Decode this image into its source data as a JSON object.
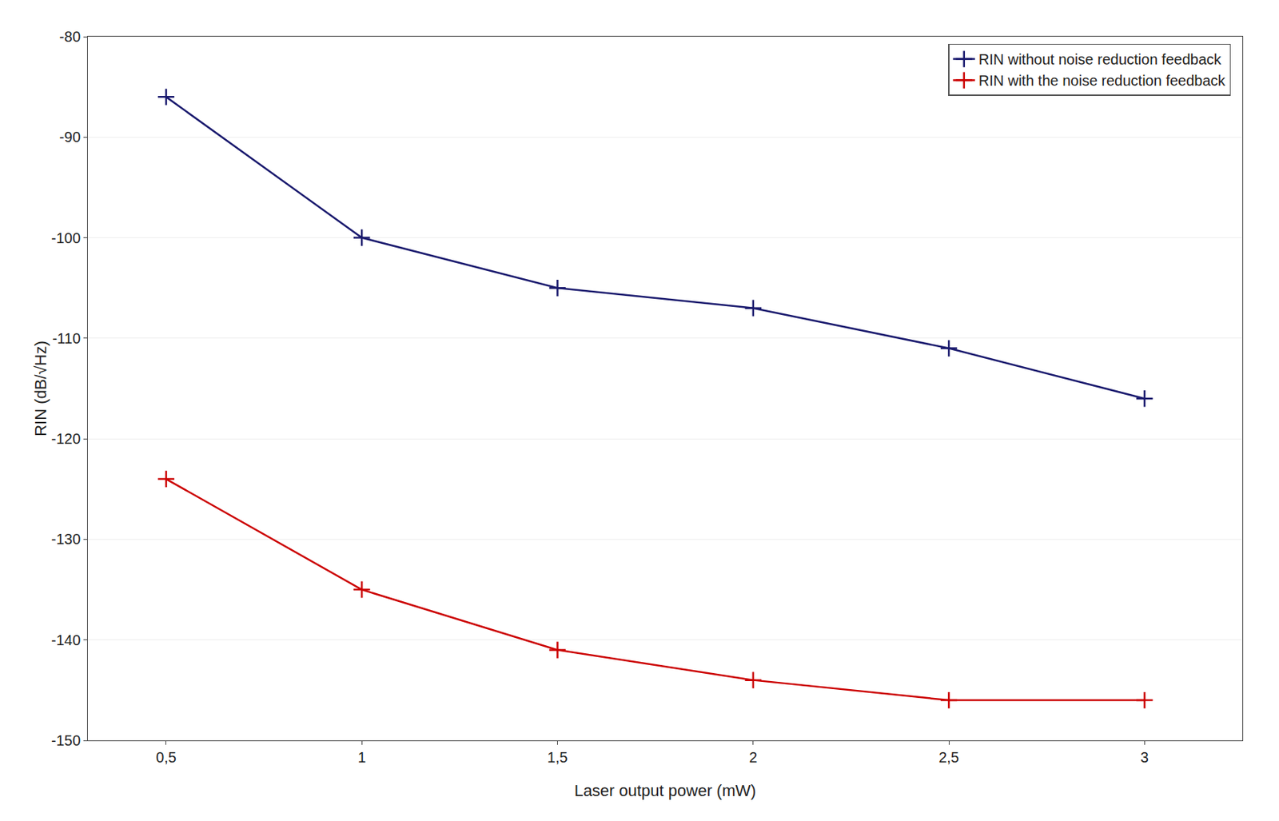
{
  "chart_data": {
    "type": "line",
    "x": [
      0.5,
      1.0,
      1.5,
      2.0,
      2.5,
      3.0
    ],
    "series": [
      {
        "name": "RIN without noise reduction feedback",
        "color": "#1a1a6e",
        "values": [
          -86,
          -100,
          -105,
          -107,
          -111,
          -116
        ],
        "marker": "plus",
        "line_style": "solid"
      },
      {
        "name": "RIN with the noise reduction feedback",
        "color": "#cc0000",
        "values": [
          -124,
          -135,
          -141,
          -144,
          -146,
          -146
        ],
        "marker": "plus",
        "line_style": "solid"
      }
    ],
    "xlabel": "Laser output power (mW)",
    "ylabel": "RIN (dB/√Hz)",
    "xlim": [
      0.3,
      3.25
    ],
    "ylim": [
      -150,
      -80
    ],
    "xticks": [
      {
        "value": 0.5,
        "label": "0,5"
      },
      1,
      {
        "value": 1.5,
        "label": "1,5"
      },
      2,
      {
        "value": 2.5,
        "label": "2,5"
      },
      3
    ],
    "yticks": [
      -150,
      -140,
      -130,
      -120,
      -110,
      -100,
      -90,
      -80
    ],
    "grid": "y",
    "legend": "upper right"
  }
}
